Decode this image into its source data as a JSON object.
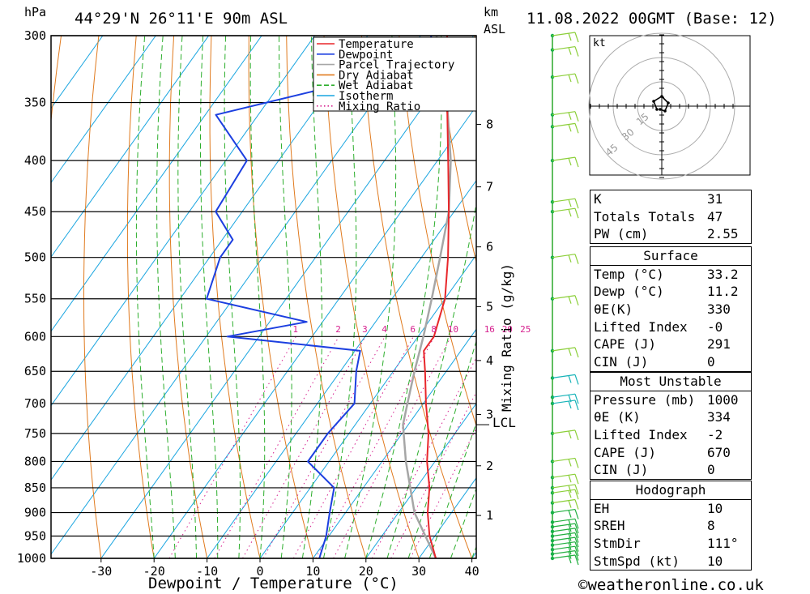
{
  "header": {
    "unit_left": "hPa",
    "location": "44°29'N  26°11'E  90m  ASL",
    "unit_km": "km",
    "unit_asl": "ASL",
    "datetime": "11.08.2022  00GMT  (Base: 12)"
  },
  "footer": {
    "credit": "©weatheronline.co.uk"
  },
  "chart_data": {
    "type": "line",
    "subtype": "skew-T log-P diagram",
    "xlabel": "Dewpoint / Temperature (°C)",
    "ylabel": "hPa",
    "xlim": [
      -40,
      40
    ],
    "pressure_range": [
      1000,
      300
    ],
    "pressure_ticks": [
      300,
      350,
      400,
      450,
      500,
      550,
      600,
      650,
      700,
      750,
      800,
      850,
      900,
      950,
      1000
    ],
    "temperature_ticks": [
      -30,
      -20,
      -10,
      0,
      10,
      20,
      30,
      40
    ],
    "height_axis_label": "km ASL",
    "height_ticks": [
      {
        "km": "1",
        "p": 906
      },
      {
        "km": "2",
        "p": 808
      },
      {
        "km": "3",
        "p": 718
      },
      {
        "km": "4",
        "p": 634
      },
      {
        "km": "5",
        "p": 560
      },
      {
        "km": "6",
        "p": 488
      },
      {
        "km": "7",
        "p": 425
      },
      {
        "km": "8",
        "p": 368
      }
    ],
    "lcl": {
      "label": "LCL",
      "p": 735
    },
    "mixing_ratio_axis_label": "Mixing Ratio (g/kg)",
    "mixing_ratio_values": [
      "1",
      "2",
      "3",
      "4",
      "6",
      "8",
      "10",
      "16",
      "20",
      "25"
    ],
    "legend": [
      "Temperature",
      "Dewpoint",
      "Parcel Trajectory",
      "Dry Adiabat",
      "Wet Adiabat",
      "Isotherm",
      "Mixing Ratio"
    ],
    "legend_position": "top-right",
    "colors": {
      "temperature": "#e8262a",
      "dewpoint": "#1c3fe0",
      "parcel": "#a6a6a6",
      "dry_adiabat": "#e07a1e",
      "wet_adiabat": "#2cae2c",
      "isotherm": "#19a5e0",
      "mixing_ratio": "#d6208e"
    },
    "series": [
      {
        "name": "Temperature",
        "points": [
          {
            "p": 1000,
            "t": 33.2
          },
          {
            "p": 950,
            "t": 29
          },
          {
            "p": 900,
            "t": 25.5
          },
          {
            "p": 850,
            "t": 22.5
          },
          {
            "p": 800,
            "t": 18.5
          },
          {
            "p": 750,
            "t": 15
          },
          {
            "p": 700,
            "t": 10.5
          },
          {
            "p": 650,
            "t": 6
          },
          {
            "p": 620,
            "t": 3
          },
          {
            "p": 600,
            "t": 3
          },
          {
            "p": 550,
            "t": 0
          },
          {
            "p": 500,
            "t": -5
          },
          {
            "p": 450,
            "t": -11
          },
          {
            "p": 400,
            "t": -18
          },
          {
            "p": 350,
            "t": -26
          },
          {
            "p": 300,
            "t": -35
          }
        ]
      },
      {
        "name": "Dewpoint",
        "points": [
          {
            "p": 1000,
            "t": 11.2
          },
          {
            "p": 950,
            "t": 9.5
          },
          {
            "p": 900,
            "t": 7
          },
          {
            "p": 850,
            "t": 4.5
          },
          {
            "p": 800,
            "t": -4
          },
          {
            "p": 750,
            "t": -4
          },
          {
            "p": 700,
            "t": -3
          },
          {
            "p": 650,
            "t": -7
          },
          {
            "p": 620,
            "t": -9
          },
          {
            "p": 600,
            "t": -36
          },
          {
            "p": 580,
            "t": -23
          },
          {
            "p": 550,
            "t": -45
          },
          {
            "p": 500,
            "t": -48
          },
          {
            "p": 480,
            "t": -48
          },
          {
            "p": 450,
            "t": -55
          },
          {
            "p": 400,
            "t": -56
          },
          {
            "p": 360,
            "t": -68
          },
          {
            "p": 320,
            "t": -35
          },
          {
            "p": 300,
            "t": -38
          }
        ]
      },
      {
        "name": "Parcel Trajectory",
        "points": [
          {
            "p": 1000,
            "t": 33.2
          },
          {
            "p": 900,
            "t": 23
          },
          {
            "p": 800,
            "t": 14.5
          },
          {
            "p": 735,
            "t": 9
          },
          {
            "p": 700,
            "t": 7
          },
          {
            "p": 650,
            "t": 4
          },
          {
            "p": 600,
            "t": 1
          },
          {
            "p": 550,
            "t": -2.5
          },
          {
            "p": 500,
            "t": -6.5
          },
          {
            "p": 450,
            "t": -11
          },
          {
            "p": 400,
            "t": -17.5
          },
          {
            "p": 350,
            "t": -26
          },
          {
            "p": 300,
            "t": -37
          }
        ]
      }
    ],
    "wind_barbs_p": [
      1000,
      990,
      980,
      970,
      960,
      950,
      940,
      930,
      920,
      900,
      880,
      860,
      850,
      830,
      800,
      750,
      700,
      690,
      660,
      620,
      550,
      500,
      450,
      440,
      400,
      370,
      360,
      330,
      310,
      300
    ],
    "hodograph": {
      "unit": "kt",
      "ring_labels": [
        "15",
        "30",
        "45"
      ],
      "trace_kt": [
        [
          -3,
          -2
        ],
        [
          -5,
          3
        ],
        [
          0,
          6
        ],
        [
          4,
          2
        ],
        [
          2,
          -3
        ],
        [
          -1,
          -2
        ]
      ]
    }
  },
  "indices": [
    {
      "label": "K",
      "value": "31"
    },
    {
      "label": "Totals Totals",
      "value": "47"
    },
    {
      "label": "PW (cm)",
      "value": "2.55"
    }
  ],
  "surface": {
    "title": "Surface",
    "rows": [
      {
        "label": "Temp (°C)",
        "value": "33.2"
      },
      {
        "label": "Dewp (°C)",
        "value": "11.2"
      },
      {
        "label": "θE(K)",
        "value": "330"
      },
      {
        "label": "Lifted Index",
        "value": "-0"
      },
      {
        "label": "CAPE (J)",
        "value": "291"
      },
      {
        "label": "CIN (J)",
        "value": "0"
      }
    ]
  },
  "most_unstable": {
    "title": "Most Unstable",
    "rows": [
      {
        "label": "Pressure (mb)",
        "value": "1000"
      },
      {
        "label": "θE (K)",
        "value": "334"
      },
      {
        "label": "Lifted Index",
        "value": "-2"
      },
      {
        "label": "CAPE (J)",
        "value": "670"
      },
      {
        "label": "CIN (J)",
        "value": "0"
      }
    ]
  },
  "hodograph_table": {
    "title": "Hodograph",
    "rows": [
      {
        "label": "EH",
        "value": "10"
      },
      {
        "label": "SREH",
        "value": "8"
      },
      {
        "label": "StmDir",
        "value": "111°"
      },
      {
        "label": "StmSpd (kt)",
        "value": "10"
      }
    ]
  }
}
